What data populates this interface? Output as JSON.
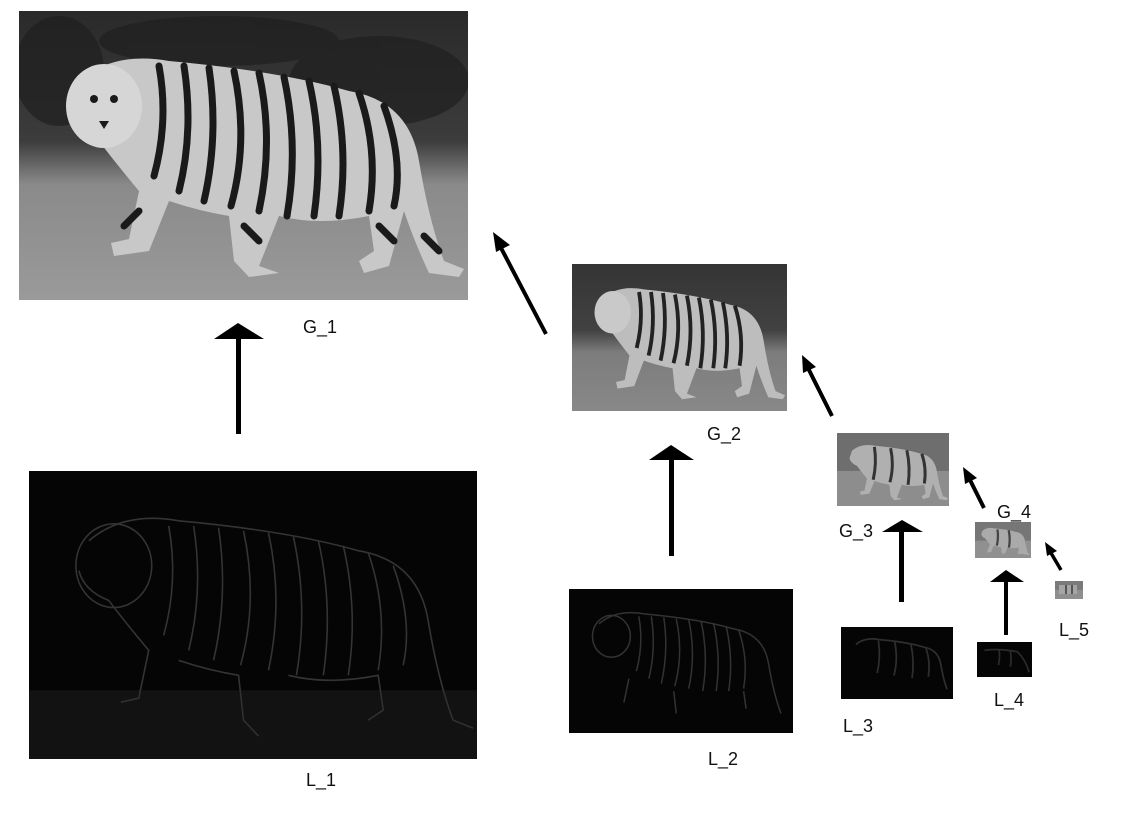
{
  "diagram": {
    "gaussian_levels": [
      {
        "label": "G_1"
      },
      {
        "label": "G_2"
      },
      {
        "label": "G_3"
      },
      {
        "label": "G_4"
      }
    ],
    "laplacian_levels": [
      {
        "label": "L_1"
      },
      {
        "label": "L_2"
      },
      {
        "label": "L_3"
      },
      {
        "label": "L_4"
      },
      {
        "label": "L_5"
      }
    ]
  }
}
